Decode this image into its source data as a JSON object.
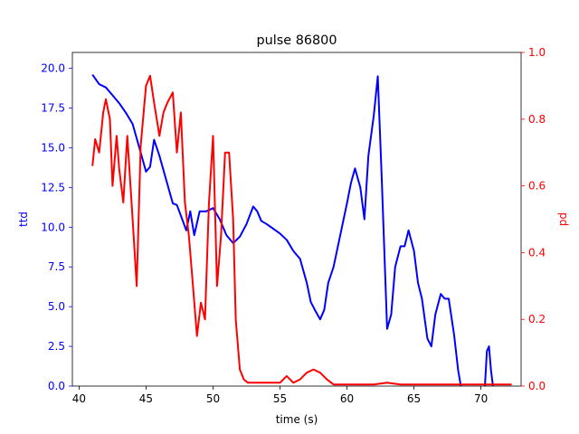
{
  "chart_data": {
    "type": "line",
    "title": "pulse 86800",
    "xlabel": "time (s)",
    "xlim": [
      39.5,
      73.0
    ],
    "xticks": [
      40,
      45,
      50,
      55,
      60,
      65,
      70
    ],
    "y_left": {
      "label": "ttd",
      "color": "#0000ff",
      "lim": [
        0,
        21
      ],
      "ticks": [
        "0.0",
        "2.5",
        "5.0",
        "7.5",
        "10.0",
        "12.5",
        "15.0",
        "17.5",
        "20.0"
      ]
    },
    "y_right": {
      "label": "pd",
      "color": "#ff0000",
      "lim": [
        0,
        1.0
      ],
      "ticks": [
        "0.0",
        "0.2",
        "0.4",
        "0.6",
        "0.8",
        "1.0"
      ]
    },
    "grid": false,
    "series": [
      {
        "axis": "left",
        "color": "#0000ff",
        "x": [
          41.0,
          41.5,
          42.0,
          42.5,
          43.0,
          43.5,
          44.0,
          44.5,
          45.0,
          45.3,
          45.6,
          46.0,
          46.5,
          47.0,
          47.3,
          47.7,
          48.0,
          48.3,
          48.6,
          49.0,
          49.5,
          50.0,
          50.5,
          51.0,
          51.5,
          52.0,
          52.5,
          53.0,
          53.3,
          53.6,
          54.0,
          54.5,
          55.0,
          55.5,
          56.0,
          56.5,
          57.0,
          57.3,
          57.6,
          58.0,
          58.3,
          58.6,
          59.0,
          59.5,
          60.0,
          60.3,
          60.6,
          61.0,
          61.3,
          61.6,
          62.0,
          62.3,
          62.6,
          63.0,
          63.3,
          63.6,
          64.0,
          64.3,
          64.6,
          65.0,
          65.3,
          65.6,
          66.0,
          66.3,
          66.6,
          67.0,
          67.3,
          67.6,
          68.0,
          68.3,
          68.5
        ],
        "y": [
          19.6,
          19.0,
          18.8,
          18.3,
          17.8,
          17.2,
          16.5,
          15.0,
          13.5,
          13.8,
          15.5,
          14.5,
          13.0,
          11.5,
          11.4,
          10.5,
          9.8,
          11.0,
          9.5,
          11.0,
          11.0,
          11.2,
          10.5,
          9.5,
          9.0,
          9.4,
          10.2,
          11.3,
          11.0,
          10.4,
          10.2,
          9.9,
          9.6,
          9.2,
          8.5,
          8.0,
          6.5,
          5.3,
          4.8,
          4.2,
          4.8,
          6.5,
          7.5,
          9.5,
          11.5,
          12.8,
          13.7,
          12.5,
          10.5,
          14.5,
          17.0,
          19.5,
          13.0,
          3.6,
          4.5,
          7.5,
          8.8,
          8.8,
          9.8,
          8.5,
          6.5,
          5.5,
          3.0,
          2.5,
          4.5,
          5.8,
          5.5,
          5.5,
          3.2,
          1.0,
          0.0
        ]
      },
      {
        "axis": "left",
        "color": "#0000ff",
        "x": [
          70.3,
          70.45,
          70.6,
          70.75,
          70.9
        ],
        "y": [
          0.0,
          2.2,
          2.5,
          1.0,
          0.0
        ]
      },
      {
        "axis": "right",
        "color": "#ff0000",
        "x": [
          41.0,
          41.2,
          41.5,
          41.8,
          42.0,
          42.3,
          42.5,
          42.8,
          43.0,
          43.3,
          43.6,
          44.0,
          44.3,
          44.6,
          45.0,
          45.3,
          45.6,
          46.0,
          46.3,
          46.6,
          47.0,
          47.3,
          47.6,
          47.9,
          48.2,
          48.5,
          48.8,
          49.1,
          49.4,
          49.7,
          50.0,
          50.3,
          50.6,
          50.9,
          51.2,
          51.5,
          51.7,
          52.0,
          52.3,
          52.6,
          53.0,
          53.5,
          54.0,
          55.0,
          55.5,
          56.0,
          56.5,
          57.0,
          57.5,
          58.0,
          58.5,
          59.0,
          60.0,
          61.0,
          62.0,
          63.0,
          64.0,
          65.0,
          66.0,
          67.0,
          68.0,
          69.0,
          70.0,
          71.0,
          72.0,
          72.3
        ],
        "y": [
          0.66,
          0.74,
          0.7,
          0.82,
          0.86,
          0.8,
          0.6,
          0.75,
          0.65,
          0.55,
          0.75,
          0.5,
          0.3,
          0.72,
          0.9,
          0.93,
          0.85,
          0.75,
          0.82,
          0.85,
          0.88,
          0.7,
          0.82,
          0.55,
          0.45,
          0.3,
          0.15,
          0.25,
          0.2,
          0.55,
          0.75,
          0.3,
          0.45,
          0.7,
          0.7,
          0.5,
          0.2,
          0.05,
          0.02,
          0.01,
          0.01,
          0.01,
          0.01,
          0.01,
          0.03,
          0.01,
          0.02,
          0.04,
          0.05,
          0.04,
          0.02,
          0.005,
          0.005,
          0.005,
          0.005,
          0.01,
          0.005,
          0.005,
          0.005,
          0.005,
          0.005,
          0.005,
          0.005,
          0.005,
          0.005,
          0.005
        ]
      }
    ]
  }
}
